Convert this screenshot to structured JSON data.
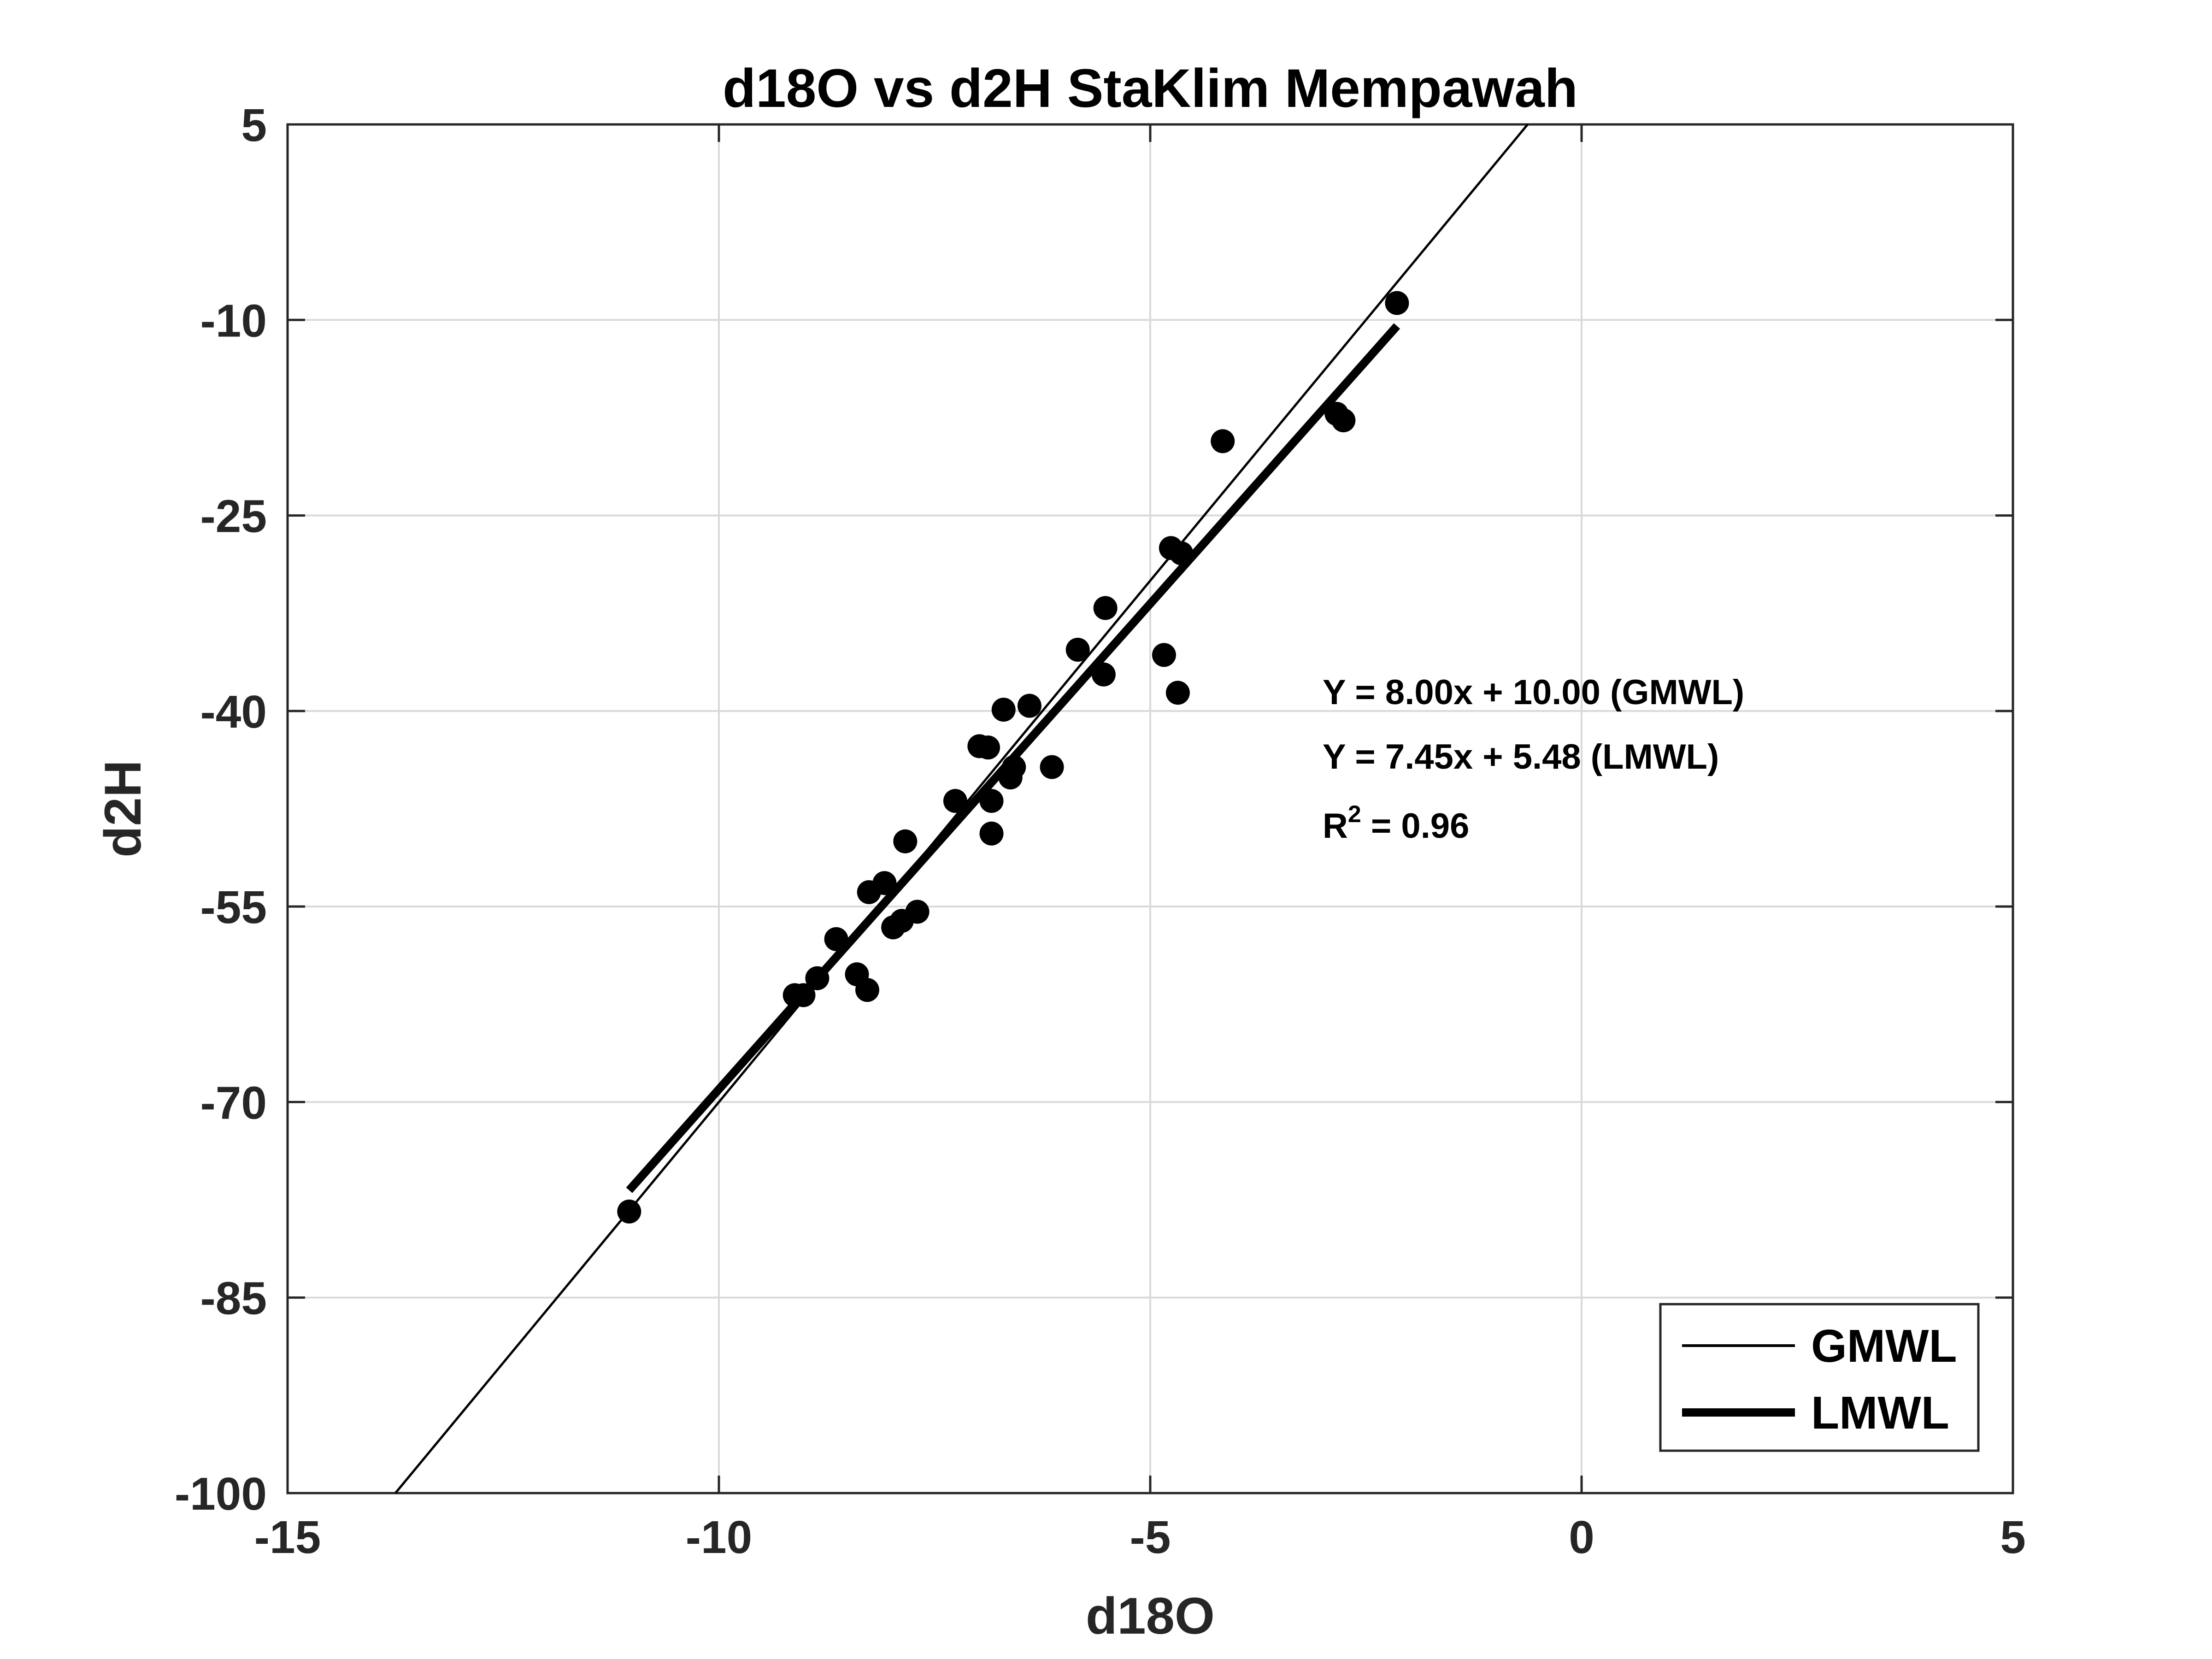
{
  "chart_data": {
    "type": "scatter",
    "title": "d18O vs d2H StaKlim Mempawah",
    "xlabel": "d18O",
    "ylabel": "d2H",
    "xlim": [
      -15,
      5
    ],
    "ylim": [
      -100,
      5
    ],
    "xticks": [
      -15,
      -10,
      -5,
      0,
      5
    ],
    "yticks": [
      -100,
      -85,
      -70,
      -55,
      -40,
      -25,
      -10,
      5
    ],
    "xtick_labels": [
      "-15",
      "-10",
      "-5",
      "0",
      "5"
    ],
    "ytick_labels": [
      "-100",
      "-85",
      "-70",
      "-55",
      "-40",
      "-25",
      "-10",
      "5"
    ],
    "grid": true,
    "colors": {
      "points": "#000000",
      "lines": "#000000",
      "grid": "#d9d9d9",
      "axes": "#262626"
    },
    "points": [
      [
        -11.04,
        -78.4
      ],
      [
        -9.12,
        -61.8
      ],
      [
        -9.02,
        -61.8
      ],
      [
        -8.86,
        -60.5
      ],
      [
        -8.64,
        -57.5
      ],
      [
        -8.4,
        -60.2
      ],
      [
        -8.28,
        -61.4
      ],
      [
        -8.26,
        -53.9
      ],
      [
        -8.08,
        -53.2
      ],
      [
        -7.98,
        -56.6
      ],
      [
        -7.88,
        -56.1
      ],
      [
        -7.84,
        -50.0
      ],
      [
        -7.7,
        -55.4
      ],
      [
        -7.26,
        -46.9
      ],
      [
        -6.98,
        -42.7
      ],
      [
        -6.88,
        -42.8
      ],
      [
        -6.84,
        -46.9
      ],
      [
        -6.84,
        -49.4
      ],
      [
        -6.7,
        -39.9
      ],
      [
        -6.62,
        -45.1
      ],
      [
        -6.58,
        -44.3
      ],
      [
        -6.4,
        -39.6
      ],
      [
        -6.14,
        -44.3
      ],
      [
        -5.84,
        -35.3
      ],
      [
        -5.54,
        -37.2
      ],
      [
        -5.52,
        -32.1
      ],
      [
        -4.84,
        -35.7
      ],
      [
        -4.76,
        -27.5
      ],
      [
        -4.68,
        -38.6
      ],
      [
        -4.64,
        -27.9
      ],
      [
        -4.16,
        -19.3
      ],
      [
        -2.84,
        -17.2
      ],
      [
        -2.76,
        -17.7
      ],
      [
        -2.14,
        -8.7
      ]
    ],
    "series": [
      {
        "name": "GMWL",
        "slope": 8.0,
        "intercept": 10.0,
        "x_range": [
          -13.75,
          -0.625
        ],
        "line_weight": "thin"
      },
      {
        "name": "LMWL",
        "slope": 7.45,
        "intercept": 5.48,
        "x_range": [
          -11.04,
          -2.14
        ],
        "line_weight": "thick"
      }
    ],
    "annotations": {
      "gmwl_eq": "Y = 8.00x + 10.00 (GMWL)",
      "lmwl_eq": "Y = 7.45x + 5.48 (LMWL)",
      "r2_prefix": "R",
      "r2_sup": "2",
      "r2_suffix": " = 0.96"
    },
    "legend": {
      "position": "bottom-right",
      "items": [
        {
          "label": "GMWL",
          "line_weight": "thin"
        },
        {
          "label": "LMWL",
          "line_weight": "thick"
        }
      ]
    }
  }
}
